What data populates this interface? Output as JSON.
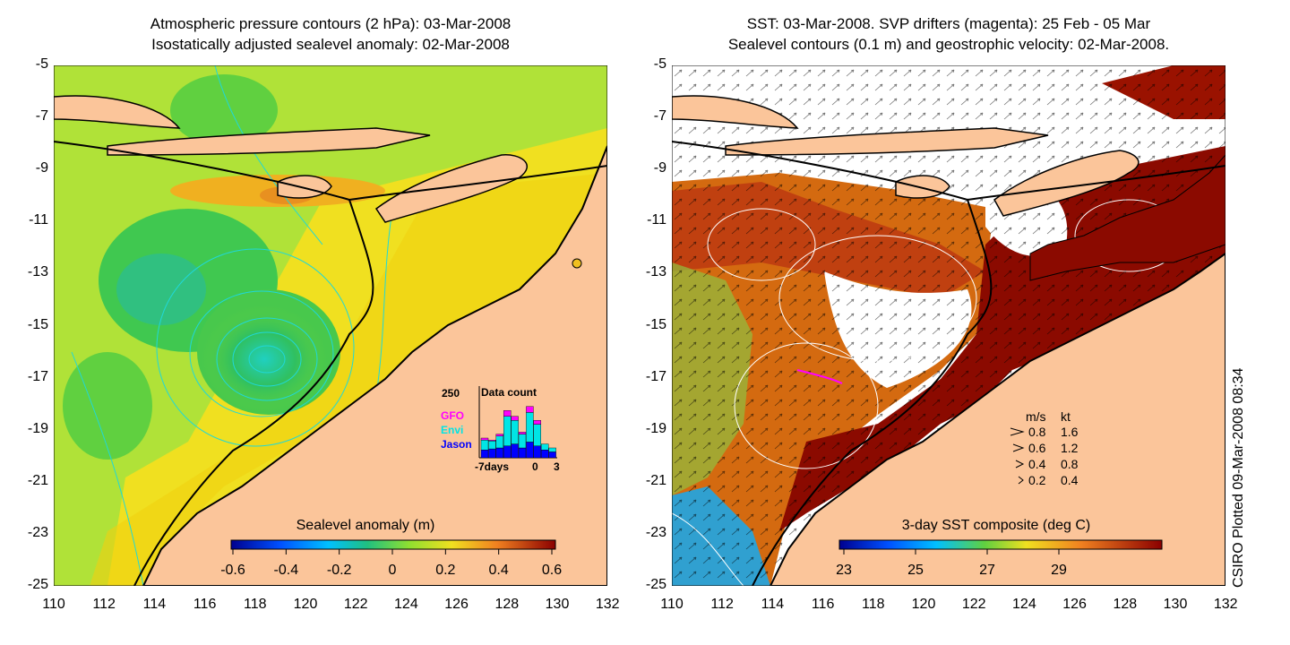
{
  "left_panel": {
    "title_line1": "Atmospheric pressure contours (2 hPa): 03-Mar-2008",
    "title_line2": "Isostatically adjusted sealevel anomaly: 02-Mar-2008",
    "colorbar_label": "Sealevel anomaly (m)",
    "colorbar_ticks": [
      "-0.6",
      "-0.4",
      "-0.2",
      "0",
      "0.2",
      "0.4",
      "0.6"
    ],
    "inset": {
      "max_label": "250",
      "title": "Data count",
      "legend": [
        {
          "name": "GFO",
          "color": "#ff00ff"
        },
        {
          "name": "Envi",
          "color": "#00e5e5"
        },
        {
          "name": "Jason",
          "color": "#0000ff"
        }
      ],
      "x_labels": [
        "-7days",
        "0",
        "3"
      ]
    }
  },
  "right_panel": {
    "title_line1": "SST: 03-Mar-2008. SVP drifters (magenta): 25 Feb - 05 Mar",
    "title_line2": "Sealevel contours (0.1 m) and geostrophic velocity: 02-Mar-2008.",
    "colorbar_label": "3-day SST composite (deg C)",
    "colorbar_ticks": [
      "23",
      "25",
      "27",
      "29"
    ],
    "velocity_legend": {
      "header_ms": "m/s",
      "header_kt": "kt",
      "rows": [
        {
          "ms": "0.8",
          "kt": "1.6"
        },
        {
          "ms": "0.6",
          "kt": "1.2"
        },
        {
          "ms": "0.4",
          "kt": "0.8"
        },
        {
          "ms": "0.2",
          "kt": "0.4"
        }
      ]
    }
  },
  "axes": {
    "y_ticks": [
      "-5",
      "-7",
      "-9",
      "-11",
      "-13",
      "-15",
      "-17",
      "-19",
      "-21",
      "-23",
      "-25"
    ],
    "x_ticks": [
      "110",
      "112",
      "114",
      "116",
      "118",
      "120",
      "122",
      "124",
      "126",
      "128",
      "130",
      "132"
    ]
  },
  "credit": "CSIRO Plotted 09-Mar-2008 08:34",
  "colors": {
    "land": "#fbc59a",
    "sla_mid": "#a8e030",
    "sst_hot": "#8b0a00"
  }
}
